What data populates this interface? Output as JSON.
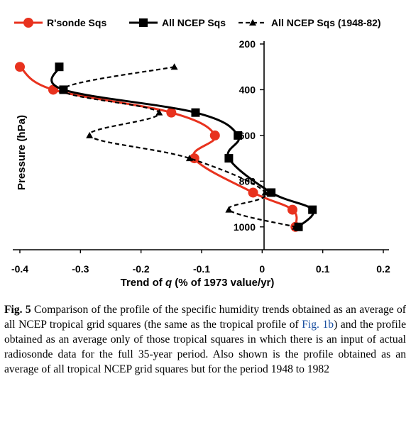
{
  "chart_data": {
    "type": "line",
    "xlabel_prefix": "Trend of ",
    "xlabel_var": "q",
    "xlabel_suffix": " (% of 1973 value/yr)",
    "ylabel": "Pressure (hPa)",
    "xlim": [
      -0.4,
      0.2
    ],
    "ylim": [
      200,
      1100
    ],
    "y_reversed": true,
    "x_ticks": [
      "-0.4",
      "-0.3",
      "-0.2",
      "-0.1",
      "0",
      "0.1",
      "0.2"
    ],
    "y_ticks": [
      "200",
      "400",
      "600",
      "800",
      "1000"
    ],
    "legend_position": "top",
    "series": [
      {
        "name": "R'sonde Sqs",
        "color": "#e8321e",
        "marker": "circle",
        "dash": "solid",
        "x": [
          -0.4,
          -0.345,
          -0.15,
          -0.078,
          -0.112,
          -0.015,
          0.05,
          0.055
        ],
        "y": [
          300,
          400,
          500,
          600,
          700,
          850,
          925,
          1000
        ]
      },
      {
        "name": "All NCEP Sqs",
        "color": "#000000",
        "marker": "square",
        "dash": "solid",
        "x": [
          -0.335,
          -0.328,
          -0.11,
          -0.04,
          -0.055,
          0.015,
          0.083,
          0.06
        ],
        "y": [
          300,
          400,
          500,
          600,
          700,
          850,
          925,
          1000
        ]
      },
      {
        "name": "All NCEP Sqs (1948-82)",
        "color": "#000000",
        "marker": "triangle",
        "dash": "dashed",
        "x": [
          -0.145,
          -0.33,
          -0.17,
          -0.285,
          -0.12,
          0.005,
          -0.055,
          0.055
        ],
        "y": [
          300,
          400,
          500,
          600,
          700,
          850,
          925,
          1000
        ]
      }
    ]
  },
  "caption": {
    "label": "Fig. 5",
    "text_before_ref": " Comparison of the profile of the specific humidity trends obtained as an average of all NCEP tropical grid squares (the same as the tropical profile of ",
    "ref": "Fig. 1b",
    "text_after_ref": ") and the profile obtained as an average only of those tropical squares in which there is an input of actual radiosonde data for the full 35-year period. Also shown is the profile obtained as an average of all tropical NCEP grid squares but for the period 1948 to 1982"
  }
}
